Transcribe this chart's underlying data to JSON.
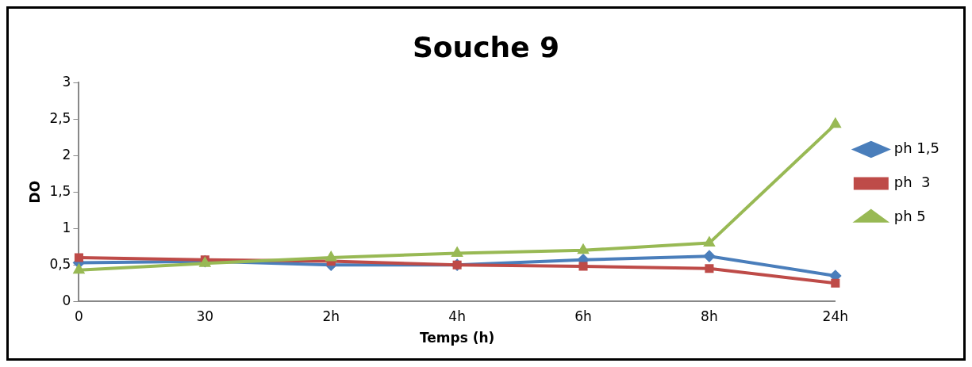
{
  "chart_data": {
    "type": "line",
    "title": "Souche 9",
    "xlabel": "Temps (h)",
    "ylabel": "DO",
    "categories": [
      "0",
      "30",
      "2h",
      "4h",
      "6h",
      "8h",
      "24h"
    ],
    "ylim": [
      0,
      3
    ],
    "yticks": [
      0,
      {
        "value": 0.5,
        "label": "0,5"
      },
      1,
      {
        "value": 1.5,
        "label": "1,5"
      },
      2,
      {
        "value": 2.5,
        "label": "2,5"
      },
      3
    ],
    "legend": "right",
    "series": [
      {
        "name": "ph 1,5",
        "color": "#4a7ebb",
        "marker": "diamond",
        "values": [
          0.53,
          0.55,
          0.5,
          0.5,
          0.57,
          0.62,
          0.35
        ]
      },
      {
        "name": "ph  3",
        "color": "#be4b48",
        "marker": "square",
        "values": [
          0.6,
          0.57,
          0.55,
          0.5,
          0.48,
          0.45,
          0.25
        ]
      },
      {
        "name": "ph 5",
        "color": "#98b954",
        "marker": "triangle",
        "values": [
          0.43,
          0.52,
          0.6,
          0.66,
          0.7,
          0.8,
          2.43
        ]
      }
    ]
  }
}
